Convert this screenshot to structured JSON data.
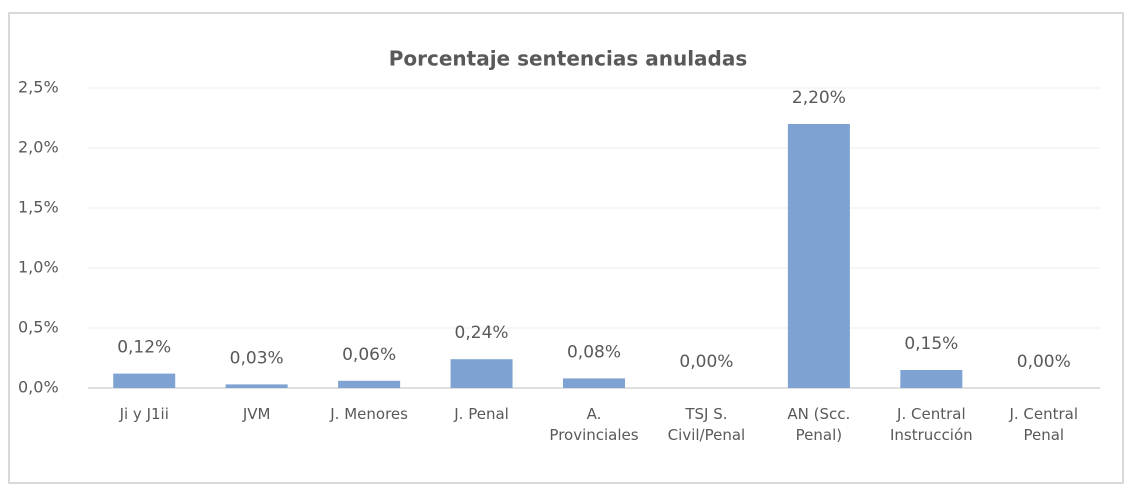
{
  "chart_data": {
    "type": "bar",
    "title": "Porcentaje sentencias anuladas",
    "categories": [
      "Ji y J1ii",
      "JVM",
      "J. Menores",
      "J. Penal",
      "A.\nProvinciales",
      "TSJ S.\nCivil/Penal",
      "AN (Scc.\nPenal)",
      "J. Central\nInstrucción",
      "J. Central\nPenal"
    ],
    "values": [
      0.12,
      0.03,
      0.06,
      0.24,
      0.08,
      0.0,
      2.2,
      0.15,
      0.0
    ],
    "value_labels": [
      "0,12%",
      "0,03%",
      "0,06%",
      "0,24%",
      "0,08%",
      "0,00%",
      "2,20%",
      "0,15%",
      "0,00%"
    ],
    "color": "#7ea3d3",
    "ylim": [
      0,
      2.5
    ],
    "yticks": [
      {
        "value": 0,
        "label": "0,0%"
      },
      {
        "value": 0.5,
        "label": "0,5%"
      },
      {
        "value": 1.0,
        "label": "1,0%"
      },
      {
        "value": 1.5,
        "label": "1,5%"
      },
      {
        "value": 2.0,
        "label": "2,0%"
      },
      {
        "value": 2.5,
        "label": "2,5%"
      }
    ],
    "grid": true
  }
}
